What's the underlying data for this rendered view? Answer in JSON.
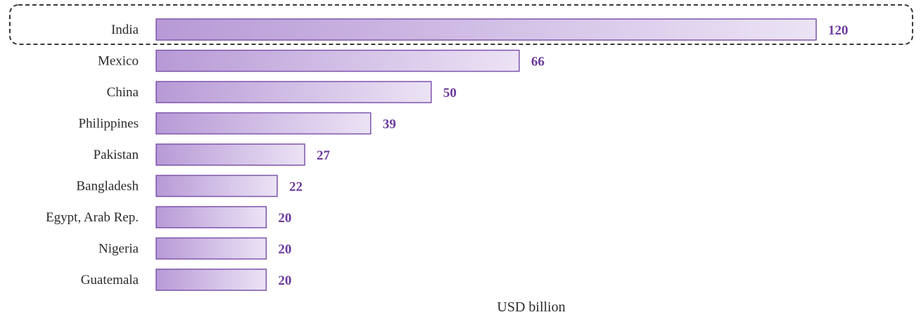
{
  "chart_data": {
    "type": "bar",
    "orientation": "horizontal",
    "categories": [
      "India",
      "Mexico",
      "China",
      "Philippines",
      "Pakistan",
      "Bangladesh",
      "Egypt, Arab Rep.",
      "Nigeria",
      "Guatemala"
    ],
    "values": [
      120,
      66,
      50,
      39,
      27,
      22,
      20,
      20,
      20
    ],
    "data_labels": [
      "120",
      "66",
      "50",
      "39",
      "27",
      "22",
      "20",
      "20",
      "20"
    ],
    "title": "",
    "xlabel": "USD billion",
    "ylabel": "",
    "xlim": [
      0,
      120
    ],
    "grid": false,
    "highlighted_category": "India",
    "colors": {
      "bar_fill_dark": "#b79ad6",
      "bar_fill_light": "#ece3f5",
      "bar_stroke": "#7e54ad",
      "value_label": "#6d3a9c",
      "category_label": "#2b2b2b",
      "highlight_border": "#3a3a3a"
    }
  }
}
